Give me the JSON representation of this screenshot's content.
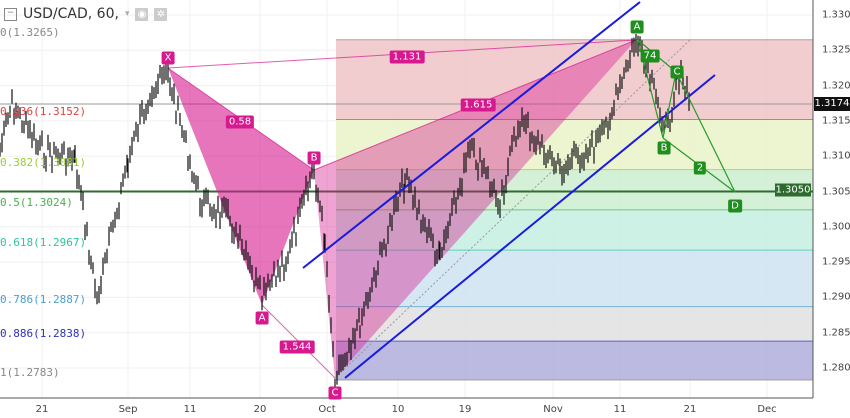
{
  "header": {
    "symbol": "USD/CAD, 60,",
    "collapse_icon": "minus-square-icon",
    "eye_icon": "eye-icon",
    "settings_icon": "gear-icon"
  },
  "y_axis": [
    "1.3300",
    "1.3250",
    "1.3200",
    "1.3150",
    "1.3100",
    "1.3050",
    "1.3000",
    "1.2950",
    "1.2900",
    "1.2850",
    "1.2800"
  ],
  "x_axis": [
    "21",
    "Sep",
    "11",
    "20",
    "Oct",
    "10",
    "19",
    "Nov",
    "11",
    "21",
    "Dec"
  ],
  "price_tags": {
    "last": "1.3174",
    "level": "1.3050"
  },
  "fib_levels": [
    {
      "label": "0(1.3265)",
      "price": 1.3265,
      "color": "#888888",
      "fill": "#f0c4c8"
    },
    {
      "label": "0.236(1.3152)",
      "price": 1.3152,
      "color": "#e04040",
      "fill": "#e9f3c8"
    },
    {
      "label": "0.382(1.3081)",
      "price": 1.3081,
      "color": "#9acd32",
      "fill": "#cdeed0"
    },
    {
      "label": "0.5(1.3024)",
      "price": 1.3024,
      "color": "#4caf50",
      "fill": "#c6efe0"
    },
    {
      "label": "0.618(1.2967)",
      "price": 1.2967,
      "color": "#2ec4a0",
      "fill": "#cce3f0"
    },
    {
      "label": "0.786(1.2887)",
      "price": 1.2887,
      "color": "#4a9fd0",
      "fill": "#e0e0e0"
    },
    {
      "label": "0.886(1.2838)",
      "price": 1.2838,
      "color": "#3030c0",
      "fill": "#b0aedc"
    },
    {
      "label": "1(1.2783)",
      "price": 1.2783,
      "color": "#888888",
      "fill": "none"
    }
  ],
  "pattern_pink": {
    "points": [
      "X",
      "A",
      "B",
      "C"
    ],
    "ratios": [
      "0.58",
      "1.131",
      "1.615",
      "1.544"
    ],
    "color": "#d6198f"
  },
  "pattern_green": {
    "points": [
      "A",
      "B",
      "C",
      "D"
    ],
    "ratios": [
      "2",
      "74"
    ],
    "color": "#1e8f1e"
  }
}
